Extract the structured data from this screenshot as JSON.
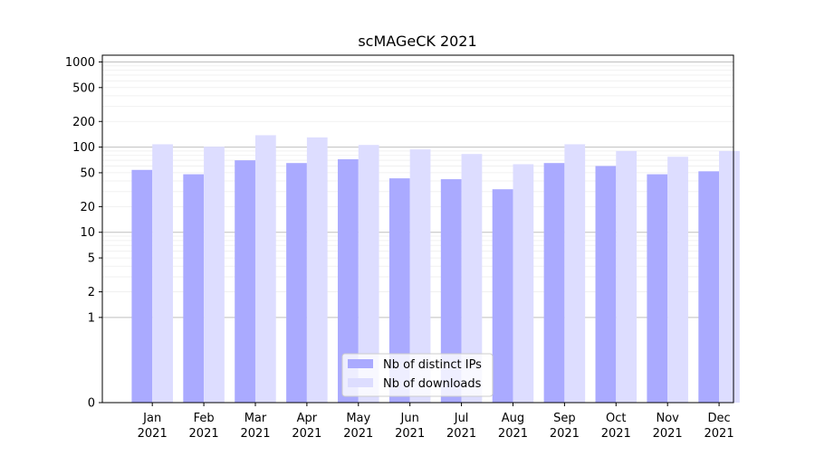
{
  "chart_data": {
    "type": "bar",
    "title": "scMAGeCK 2021",
    "xlabel": "",
    "ylabel": "",
    "y_scale": "symlog",
    "ylim": [
      0,
      1200
    ],
    "y_ticks": [
      {
        "value": 0,
        "label": "0"
      },
      {
        "value": 1,
        "label": "1"
      },
      {
        "value": 2,
        "label": "2"
      },
      {
        "value": 5,
        "label": "5"
      },
      {
        "value": 10,
        "label": "10"
      },
      {
        "value": 20,
        "label": "20"
      },
      {
        "value": 50,
        "label": "50"
      },
      {
        "value": 100,
        "label": "100"
      },
      {
        "value": 200,
        "label": "200"
      },
      {
        "value": 500,
        "label": "500"
      },
      {
        "value": 1000,
        "label": "1000"
      }
    ],
    "categories": [
      [
        "Jan",
        "2021"
      ],
      [
        "Feb",
        "2021"
      ],
      [
        "Mar",
        "2021"
      ],
      [
        "Apr",
        "2021"
      ],
      [
        "May",
        "2021"
      ],
      [
        "Jun",
        "2021"
      ],
      [
        "Jul",
        "2021"
      ],
      [
        "Aug",
        "2021"
      ],
      [
        "Sep",
        "2021"
      ],
      [
        "Oct",
        "2021"
      ],
      [
        "Nov",
        "2021"
      ],
      [
        "Dec",
        "2021"
      ]
    ],
    "series": [
      {
        "name": "Nb of distinct IPs",
        "color": "#aaaaff",
        "values": [
          54,
          48,
          70,
          65,
          72,
          43,
          42,
          32,
          65,
          60,
          48,
          52
        ]
      },
      {
        "name": "Nb of downloads",
        "color": "#ddddff",
        "values": [
          108,
          101,
          138,
          130,
          106,
          94,
          83,
          63,
          108,
          90,
          77,
          90
        ]
      }
    ],
    "grid": true,
    "legend_position": "lower-center"
  }
}
